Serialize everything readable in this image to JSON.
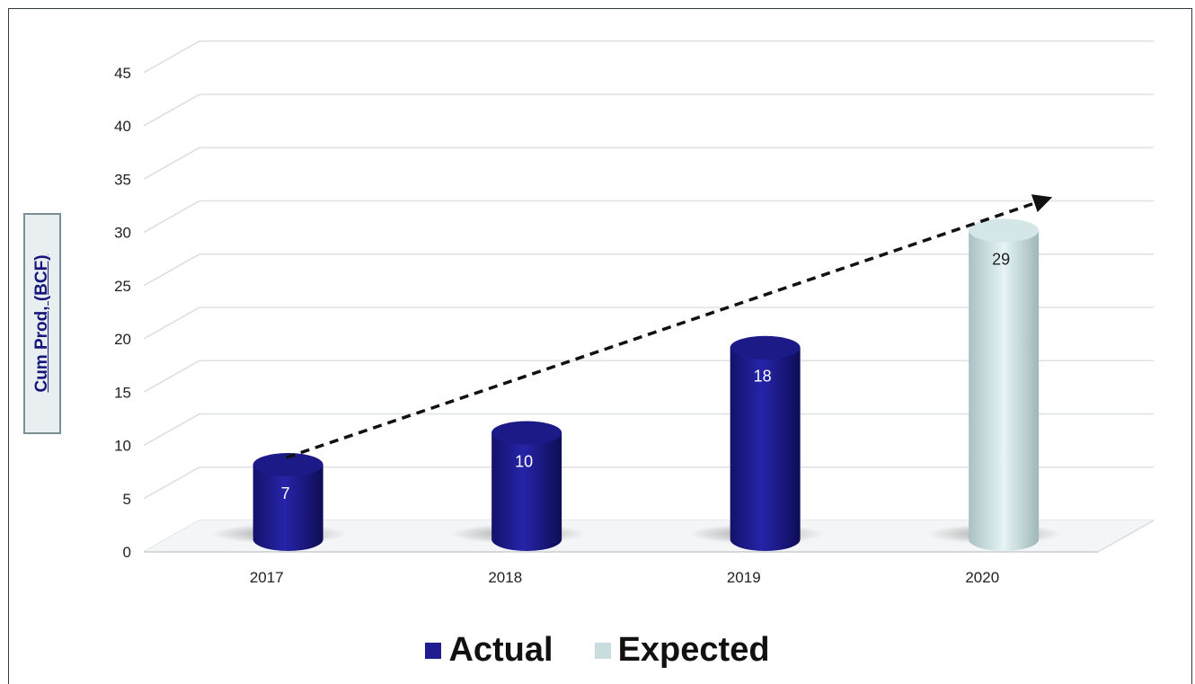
{
  "chart_data": {
    "type": "bar",
    "categories": [
      "2017",
      "2018",
      "2019",
      "2020"
    ],
    "series": [
      {
        "name": "Actual",
        "values": [
          7,
          10,
          18,
          null
        ],
        "color": "#1f1d8f"
      },
      {
        "name": "Expected",
        "values": [
          null,
          null,
          null,
          29
        ],
        "color": "#c9dcde"
      }
    ],
    "data_labels": [
      "7",
      "10",
      "18",
      "29"
    ],
    "ylabel": "Cum Prod, (BCF)",
    "xlabel": "",
    "ylim": [
      0,
      45
    ],
    "yticks": [
      "0",
      "5",
      "10",
      "15",
      "20",
      "25",
      "30",
      "35",
      "40",
      "45"
    ],
    "grid": true,
    "legend_position": "bottom",
    "style": "3d-cylinder",
    "trend_arrow": {
      "from_category": "2017",
      "from_value": 7,
      "to_category": "2020",
      "to_value": 31.5,
      "style": "dashed"
    }
  }
}
